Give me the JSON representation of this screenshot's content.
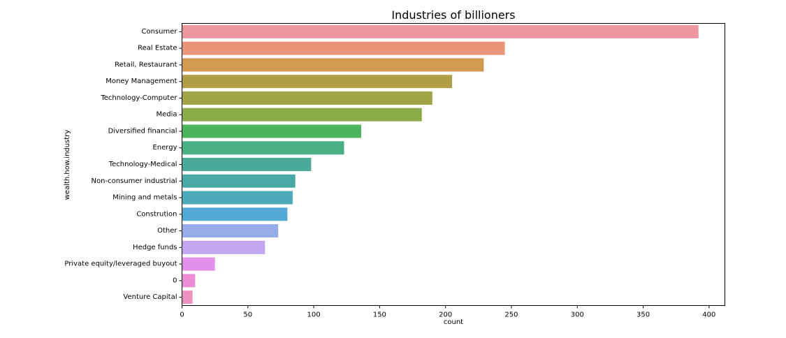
{
  "chart_data": {
    "type": "bar",
    "orientation": "horizontal",
    "title": "Industries of billioners",
    "xlabel": "count",
    "ylabel": "wealth.how.industry",
    "xlim": [
      0,
      412
    ],
    "xticks": [
      0,
      50,
      100,
      150,
      200,
      250,
      300,
      350,
      400
    ],
    "grid": false,
    "categories": [
      "Consumer",
      "Real Estate",
      "Retail, Restaurant",
      "Money Management",
      "Technology-Computer",
      "Media",
      "Diversified financial",
      "Energy",
      "Technology-Medical",
      "Non-consumer industrial",
      "Mining and metals",
      "Constrution",
      "Other",
      "Hedge funds",
      "Private equity/leveraged buyout",
      "0",
      "Venture Capital"
    ],
    "values": [
      392,
      245,
      229,
      205,
      190,
      182,
      136,
      123,
      98,
      86,
      84,
      80,
      73,
      63,
      25,
      10,
      8
    ],
    "colors": [
      "#ef97a1",
      "#e99578",
      "#d39a4f",
      "#b19f48",
      "#a1a447",
      "#8bab49",
      "#4cb55b",
      "#4aaf85",
      "#49ab97",
      "#4aa8a7",
      "#4caab9",
      "#53a8d4",
      "#96acea",
      "#c1a5ee",
      "#e48fe9",
      "#ec8ed6",
      "#ee91c1"
    ]
  }
}
